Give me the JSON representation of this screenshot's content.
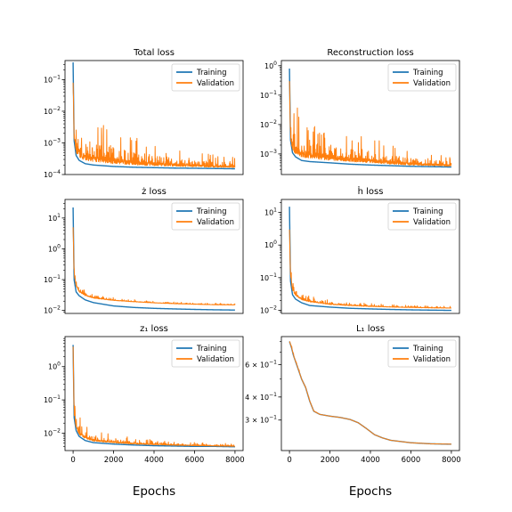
{
  "figure": {
    "x_axis_label": "Epochs"
  },
  "chart_data": [
    {
      "type": "line",
      "title": "Total loss",
      "xlabel": "",
      "ylabel": "",
      "yscale": "log",
      "xlim": [
        -400,
        8400
      ],
      "ylim": [
        0.0001,
        0.4
      ],
      "yticks": [
        {
          "value": 0.1,
          "label": "10^-1"
        },
        {
          "value": 0.01,
          "label": "10^-2"
        },
        {
          "value": 0.001,
          "label": "10^-3"
        },
        {
          "value": 0.0001,
          "label": "10^-4"
        }
      ],
      "xticks": [],
      "legend": "top-right",
      "grid": false,
      "series": [
        {
          "name": "Training",
          "color": "#1f77b4",
          "x": [
            0,
            50,
            150,
            300,
            600,
            1000,
            2000,
            3000,
            4000,
            5000,
            6000,
            7000,
            8000
          ],
          "y": [
            0.35,
            0.0012,
            0.0004,
            0.00028,
            0.00022,
            0.0002,
            0.00018,
            0.00017,
            0.000165,
            0.00016,
            0.000158,
            0.000155,
            0.000152
          ]
        },
        {
          "name": "Validation",
          "color": "#ff7f0e",
          "x": [
            0,
            50,
            150,
            300,
            600,
            1000,
            2000,
            3000,
            4000,
            5000,
            6000,
            7000,
            8000
          ],
          "y": [
            0.08,
            0.0014,
            0.0005,
            0.00035,
            0.00028,
            0.00025,
            0.00022,
            0.0002,
            0.00019,
            0.00018,
            0.000175,
            0.00017,
            0.000165
          ],
          "noise": [
            0.0,
            1.2,
            1.6,
            1.7,
            1.6,
            1.4,
            1.2,
            0.9,
            0.8,
            0.6,
            0.5,
            0.4,
            0.35
          ]
        }
      ]
    },
    {
      "type": "line",
      "title": "Reconstruction loss",
      "xlabel": "",
      "ylabel": "",
      "yscale": "log",
      "xlim": [
        -400,
        8400
      ],
      "ylim": [
        0.0002,
        1.5
      ],
      "yticks": [
        {
          "value": 1,
          "label": "10^0"
        },
        {
          "value": 0.1,
          "label": "10^-1"
        },
        {
          "value": 0.01,
          "label": "10^-2"
        },
        {
          "value": 0.001,
          "label": "10^-3"
        }
      ],
      "xticks": [],
      "legend": "top-right",
      "grid": false,
      "series": [
        {
          "name": "Training",
          "color": "#1f77b4",
          "x": [
            0,
            50,
            150,
            300,
            600,
            1000,
            2000,
            3000,
            4000,
            5000,
            6000,
            7000,
            8000
          ],
          "y": [
            0.8,
            0.003,
            0.0011,
            0.0008,
            0.0006,
            0.00055,
            0.0005,
            0.00045,
            0.00042,
            0.0004,
            0.00038,
            0.00037,
            0.00036
          ]
        },
        {
          "name": "Validation",
          "color": "#ff7f0e",
          "x": [
            0,
            50,
            150,
            300,
            600,
            1000,
            2000,
            3000,
            4000,
            5000,
            6000,
            7000,
            8000
          ],
          "y": [
            0.3,
            0.0035,
            0.0013,
            0.001,
            0.0008,
            0.0007,
            0.0006,
            0.00055,
            0.0005,
            0.00045,
            0.00042,
            0.0004,
            0.00038
          ],
          "noise": [
            0.0,
            1.3,
            1.7,
            1.8,
            1.7,
            1.5,
            1.3,
            1.0,
            0.9,
            0.7,
            0.55,
            0.45,
            0.35
          ]
        }
      ]
    },
    {
      "type": "line",
      "title": "ż loss",
      "xlabel": "",
      "ylabel": "",
      "yscale": "log",
      "xlim": [
        -400,
        8400
      ],
      "ylim": [
        0.008,
        40
      ],
      "yticks": [
        {
          "value": 10,
          "label": "10^1"
        },
        {
          "value": 1,
          "label": "10^0"
        },
        {
          "value": 0.1,
          "label": "10^-1"
        },
        {
          "value": 0.01,
          "label": "10^-2"
        }
      ],
      "xticks": [],
      "legend": "top-right",
      "grid": false,
      "series": [
        {
          "name": "Training",
          "color": "#1f77b4",
          "x": [
            0,
            50,
            150,
            300,
            600,
            1000,
            2000,
            3000,
            4000,
            5000,
            6000,
            7000,
            8000
          ],
          "y": [
            22,
            0.1,
            0.04,
            0.03,
            0.022,
            0.018,
            0.014,
            0.0125,
            0.0117,
            0.0112,
            0.0108,
            0.0105,
            0.0103
          ]
        },
        {
          "name": "Validation",
          "color": "#ff7f0e",
          "x": [
            0,
            50,
            150,
            300,
            600,
            1000,
            2000,
            3000,
            4000,
            5000,
            6000,
            7000,
            8000
          ],
          "y": [
            5,
            0.14,
            0.06,
            0.04,
            0.03,
            0.025,
            0.021,
            0.019,
            0.0175,
            0.0165,
            0.0158,
            0.0152,
            0.015
          ],
          "noise": [
            0.0,
            0.6,
            0.4,
            0.3,
            0.2,
            0.15,
            0.1,
            0.08,
            0.07,
            0.06,
            0.05,
            0.05,
            0.05
          ]
        }
      ]
    },
    {
      "type": "line",
      "title": "ḣ loss",
      "xlabel": "",
      "ylabel": "",
      "yscale": "log",
      "xlim": [
        -400,
        8400
      ],
      "ylim": [
        0.008,
        25
      ],
      "yticks": [
        {
          "value": 10,
          "label": "10^1"
        },
        {
          "value": 1,
          "label": "10^0"
        },
        {
          "value": 0.1,
          "label": "10^-1"
        },
        {
          "value": 0.01,
          "label": "10^-2"
        }
      ],
      "xticks": [],
      "legend": "top-right",
      "grid": false,
      "series": [
        {
          "name": "Training",
          "color": "#1f77b4",
          "x": [
            0,
            50,
            150,
            300,
            600,
            1000,
            2000,
            3000,
            4000,
            5000,
            6000,
            7000,
            8000
          ],
          "y": [
            15,
            0.08,
            0.03,
            0.022,
            0.017,
            0.014,
            0.0125,
            0.0115,
            0.011,
            0.0106,
            0.0103,
            0.0101,
            0.0099
          ]
        },
        {
          "name": "Validation",
          "color": "#ff7f0e",
          "x": [
            0,
            50,
            150,
            300,
            600,
            1000,
            2000,
            3000,
            4000,
            5000,
            6000,
            7000,
            8000
          ],
          "y": [
            3,
            0.1,
            0.04,
            0.028,
            0.021,
            0.018,
            0.015,
            0.0138,
            0.013,
            0.0125,
            0.0121,
            0.0118,
            0.0116
          ],
          "noise": [
            0.0,
            0.8,
            0.5,
            0.35,
            0.25,
            0.2,
            0.15,
            0.12,
            0.1,
            0.08,
            0.07,
            0.06,
            0.06
          ]
        }
      ]
    },
    {
      "type": "line",
      "title": "z₁ loss",
      "xlabel": "Epochs",
      "ylabel": "",
      "yscale": "log",
      "xlim": [
        -400,
        8400
      ],
      "ylim": [
        0.003,
        8
      ],
      "yticks": [
        {
          "value": 1,
          "label": "10^0"
        },
        {
          "value": 0.1,
          "label": "10^-1"
        },
        {
          "value": 0.01,
          "label": "10^-2"
        }
      ],
      "xticks": [
        {
          "value": 0,
          "label": "0"
        },
        {
          "value": 2000,
          "label": "2000"
        },
        {
          "value": 4000,
          "label": "4000"
        },
        {
          "value": 6000,
          "label": "6000"
        },
        {
          "value": 8000,
          "label": "8000"
        }
      ],
      "legend": "top-right",
      "grid": false,
      "series": [
        {
          "name": "Training",
          "color": "#1f77b4",
          "x": [
            0,
            50,
            150,
            300,
            600,
            1000,
            2000,
            3000,
            4000,
            5000,
            6000,
            7000,
            8000
          ],
          "y": [
            4.5,
            0.03,
            0.012,
            0.008,
            0.006,
            0.0052,
            0.0047,
            0.0044,
            0.0042,
            0.0041,
            0.004,
            0.004,
            0.0039
          ]
        },
        {
          "name": "Validation",
          "color": "#ff7f0e",
          "x": [
            0,
            50,
            150,
            300,
            600,
            1000,
            2000,
            3000,
            4000,
            5000,
            6000,
            7000,
            8000
          ],
          "y": [
            4.0,
            0.035,
            0.013,
            0.009,
            0.0068,
            0.0058,
            0.0051,
            0.0047,
            0.0045,
            0.0043,
            0.0042,
            0.0041,
            0.004
          ],
          "noise": [
            0.0,
            1.0,
            0.8,
            0.6,
            0.45,
            0.35,
            0.25,
            0.2,
            0.15,
            0.12,
            0.1,
            0.1,
            0.08
          ]
        }
      ]
    },
    {
      "type": "line",
      "title": "L₁ loss",
      "xlabel": "Epochs",
      "ylabel": "",
      "yscale": "log",
      "xlim": [
        -400,
        8400
      ],
      "ylim": [
        0.205,
        0.85
      ],
      "yticks": [
        {
          "value": 0.6,
          "label": "6 × 10^-1"
        },
        {
          "value": 0.4,
          "label": "4 × 10^-1"
        },
        {
          "value": 0.3,
          "label": "3 × 10^-1"
        }
      ],
      "xticks": [
        {
          "value": 0,
          "label": "0"
        },
        {
          "value": 2000,
          "label": "2000"
        },
        {
          "value": 4000,
          "label": "4000"
        },
        {
          "value": 6000,
          "label": "6000"
        },
        {
          "value": 8000,
          "label": "8000"
        }
      ],
      "legend": "top-right",
      "grid": false,
      "series": [
        {
          "name": "Training",
          "color": "#1f77b4",
          "x": [
            0,
            100,
            200,
            400,
            600,
            800,
            1000,
            1200,
            1500,
            2000,
            2500,
            3000,
            3400,
            3800,
            4200,
            4600,
            5000,
            6000,
            7000,
            8000
          ],
          "y": [
            0.8,
            0.74,
            0.67,
            0.58,
            0.5,
            0.45,
            0.38,
            0.335,
            0.322,
            0.315,
            0.31,
            0.302,
            0.29,
            0.27,
            0.25,
            0.24,
            0.233,
            0.226,
            0.223,
            0.222
          ]
        },
        {
          "name": "Validation",
          "color": "#ff7f0e",
          "x": [
            0,
            100,
            200,
            400,
            600,
            800,
            1000,
            1200,
            1500,
            2000,
            2500,
            3000,
            3400,
            3800,
            4200,
            4600,
            5000,
            6000,
            7000,
            8000
          ],
          "y": [
            0.8,
            0.74,
            0.67,
            0.58,
            0.5,
            0.45,
            0.38,
            0.335,
            0.322,
            0.315,
            0.31,
            0.302,
            0.29,
            0.27,
            0.25,
            0.24,
            0.233,
            0.226,
            0.223,
            0.222
          ],
          "noise": [
            0.03,
            0.03,
            0.02,
            0.02,
            0.01,
            0.01,
            0.01,
            0.01,
            0,
            0,
            0,
            0,
            0,
            0,
            0,
            0,
            0,
            0,
            0,
            0
          ]
        }
      ]
    }
  ]
}
